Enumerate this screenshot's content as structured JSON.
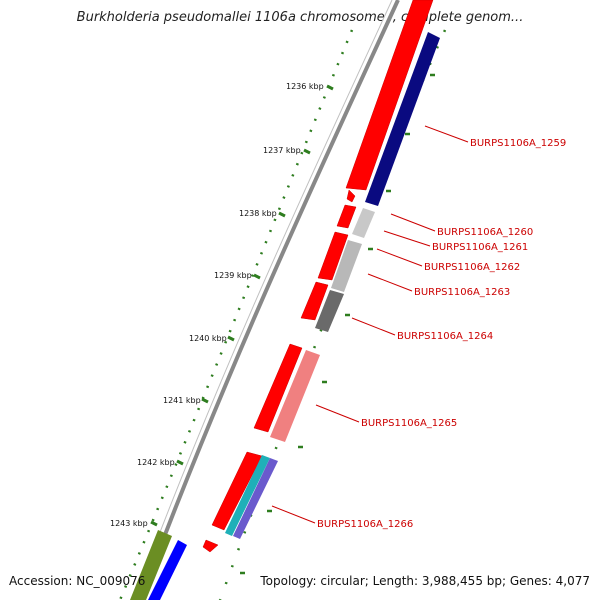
{
  "header": {
    "title": "Burkholderia pseudomallei 1106a chromosome I, complete genom..."
  },
  "footer": {
    "accession": "Accession: NC_009076",
    "summary": "Topology: circular; Length: 3,988,455 bp; Genes: 4,077"
  },
  "ruler": {
    "tick_color": "#2e7d1f",
    "labels": [
      "1236 kbp",
      "1237 kbp",
      "1238 kbp",
      "1239 kbp",
      "1240 kbp",
      "1241 kbp",
      "1242 kbp",
      "1243 kbp"
    ]
  },
  "genes": {
    "label_color": "#cc0000",
    "labels": [
      "BURPS1106A_1259",
      "BURPS1106A_1260",
      "BURPS1106A_1261",
      "BURPS1106A_1262",
      "BURPS1106A_1263",
      "BURPS1106A_1264",
      "BURPS1106A_1265",
      "BURPS1106A_1266"
    ]
  },
  "colors": {
    "cds_red": "#ff0000",
    "navy": "#0a0a80",
    "grey_light": "#c8c8c8",
    "grey_mid": "#a8a8a8",
    "grey_dark": "#6a6a6a",
    "pink": "#f08080",
    "teal": "#1fb0b8",
    "olive": "#6b8e23",
    "blue": "#0000ff",
    "backbone": "#888888"
  }
}
